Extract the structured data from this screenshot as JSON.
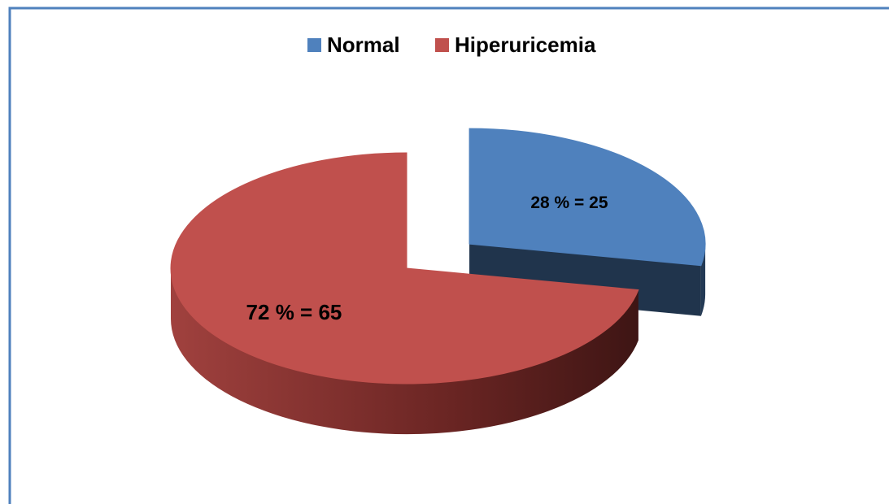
{
  "chart_data": {
    "type": "pie",
    "categories": [
      "Normal",
      "Hiperuricemia"
    ],
    "values": [
      28,
      72
    ],
    "value_labels": [
      "28 % = 25",
      "72 % = 65"
    ],
    "colors": [
      "#4f81bd",
      "#c0504d"
    ],
    "explode": [
      true,
      false
    ],
    "legend": "top"
  }
}
